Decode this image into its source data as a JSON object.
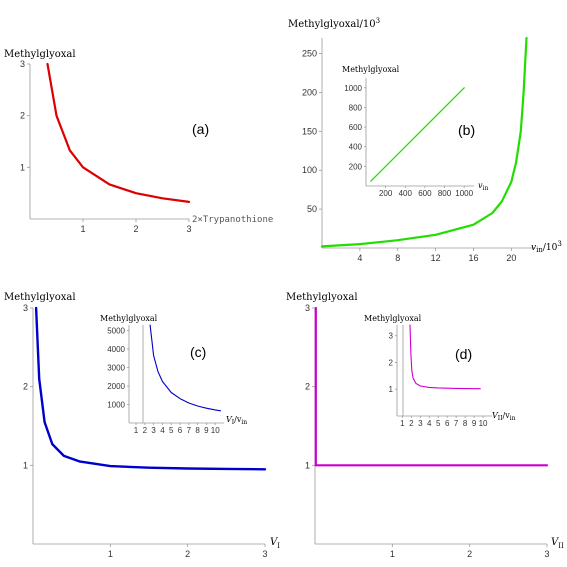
{
  "chart_data": [
    {
      "id": "a",
      "type": "line",
      "panel_label": "(a)",
      "ylabel": "Methylglyoxal",
      "xlabel": "2×Trypanothione",
      "xticks": [
        "1",
        "2",
        "3"
      ],
      "yticks": [
        "1",
        "2",
        "3"
      ],
      "xlim": [
        0,
        3
      ],
      "ylim": [
        0,
        3
      ],
      "color": "#dd0000",
      "series": [
        {
          "x": [
            0.33,
            0.5,
            0.75,
            1.0,
            1.5,
            2.0,
            2.5,
            3.0
          ],
          "y": [
            3.0,
            2.0,
            1.33,
            1.0,
            0.67,
            0.5,
            0.4,
            0.33
          ]
        }
      ]
    },
    {
      "id": "b",
      "type": "line",
      "panel_label": "(b)",
      "ylabel": "Methylglyoxal/10",
      "ylabel_sup": "3",
      "xlabel": "v",
      "xlabel_sub": "in",
      "xlabel_tail": "/10",
      "xlabel_sup": "3",
      "xticks": [
        "4",
        "8",
        "12",
        "16",
        "20"
      ],
      "yticks": [
        "50",
        "100",
        "150",
        "200",
        "250"
      ],
      "xlim": [
        0,
        22.5
      ],
      "ylim": [
        0,
        270
      ],
      "color": "#22dd00",
      "series": [
        {
          "x": [
            0,
            4,
            8,
            12,
            16,
            18,
            19,
            20,
            20.5,
            21,
            21.3,
            21.6
          ],
          "y": [
            2,
            5,
            10,
            17,
            30,
            45,
            60,
            85,
            110,
            150,
            200,
            270
          ]
        }
      ],
      "inset": {
        "type": "line",
        "ylabel": "Methylglyoxal",
        "xlabel": "v",
        "xlabel_sub": "in",
        "xticks": [
          "200",
          "400",
          "600",
          "800",
          "1000"
        ],
        "yticks": [
          "200",
          "400",
          "600",
          "800",
          "1000"
        ],
        "xlim": [
          0,
          1100
        ],
        "ylim": [
          0,
          1100
        ],
        "series": [
          {
            "x": [
              50,
              1000
            ],
            "y": [
              50,
              1000
            ]
          }
        ]
      }
    },
    {
      "id": "c",
      "type": "line",
      "panel_label": "(c)",
      "ylabel": "Methylglyoxal",
      "xlabel": "V",
      "xlabel_sub": "I",
      "xticks": [
        "1",
        "2",
        "3"
      ],
      "yticks": [
        "1",
        "2",
        "3"
      ],
      "xlim": [
        0,
        3
      ],
      "ylim": [
        0,
        3
      ],
      "color": "#0000cc",
      "series": [
        {
          "x": [
            0.04,
            0.08,
            0.15,
            0.25,
            0.4,
            0.6,
            1.0,
            1.5,
            2.0,
            2.5,
            3.0
          ],
          "y": [
            3.0,
            2.1,
            1.55,
            1.27,
            1.12,
            1.05,
            0.99,
            0.97,
            0.96,
            0.955,
            0.95
          ]
        }
      ],
      "inset": {
        "type": "line",
        "ylabel": "Methylglyoxal",
        "xlabel": "V",
        "xlabel_sub": "I",
        "xlabel_tail": "/v",
        "xlabel_sub2": "in",
        "xticks": [
          "1",
          "2",
          "3",
          "4",
          "5",
          "6",
          "7",
          "8",
          "9",
          "10"
        ],
        "yticks": [
          "1000",
          "2000",
          "3000",
          "4000",
          "5000"
        ],
        "xlim": [
          0.2,
          11
        ],
        "ylim": [
          0,
          5300
        ],
        "series": [
          {
            "x": [
              2.6,
              3.0,
              3.5,
              4,
              5,
              6,
              7,
              8,
              9,
              10,
              10.6
            ],
            "y": [
              5300,
              3650,
              2780,
              2250,
              1650,
              1320,
              1080,
              920,
              800,
              710,
              660
            ]
          }
        ]
      }
    },
    {
      "id": "d",
      "type": "line",
      "panel_label": "(d)",
      "ylabel": "Methylglyoxal",
      "xlabel": "V",
      "xlabel_sub": "II",
      "xticks": [
        "1",
        "2",
        "3"
      ],
      "yticks": [
        "1",
        "2",
        "3"
      ],
      "xlim": [
        0,
        3
      ],
      "ylim": [
        0,
        3
      ],
      "color": "#cc00cc",
      "series": [
        {
          "x": [
            0.01,
            0.01,
            3.0
          ],
          "y": [
            3.0,
            1.0,
            1.0
          ]
        }
      ],
      "inset": {
        "type": "line",
        "ylabel": "Methylglyoxal",
        "xlabel": "V",
        "xlabel_sub": "II",
        "xlabel_tail": "/v",
        "xlabel_sub2": "in",
        "xticks": [
          "1",
          "2",
          "3",
          "4",
          "5",
          "6",
          "7",
          "8",
          "9",
          "10"
        ],
        "yticks": [
          "1",
          "2",
          "3"
        ],
        "xlim": [
          0.4,
          11
        ],
        "ylim": [
          0,
          3.4
        ],
        "series": [
          {
            "x": [
              1.85,
              1.95,
              2.05,
              2.2,
              2.5,
              3,
              4,
              5,
              6,
              7,
              8,
              9,
              9.7
            ],
            "y": [
              3.4,
              2.3,
              1.7,
              1.42,
              1.22,
              1.12,
              1.07,
              1.05,
              1.04,
              1.03,
              1.025,
              1.02,
              1.02
            ]
          }
        ]
      }
    }
  ]
}
